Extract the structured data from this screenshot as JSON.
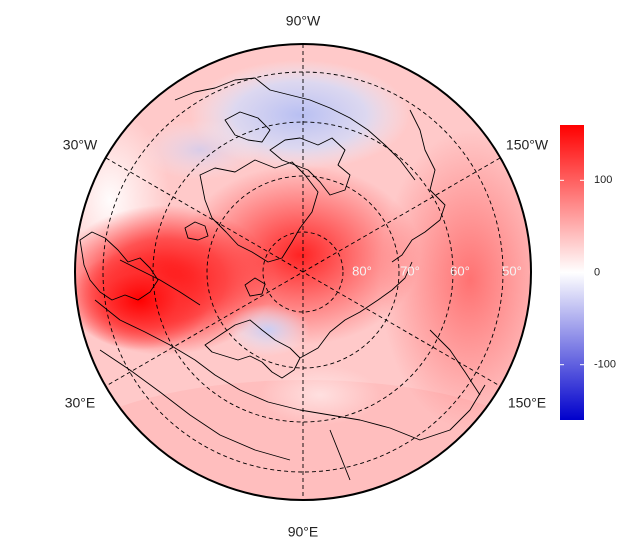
{
  "map": {
    "projection": "north-polar-stereographic",
    "lon_labels": [
      {
        "id": "90w",
        "text": "90°W"
      },
      {
        "id": "30w",
        "text": "30°W"
      },
      {
        "id": "150w",
        "text": "150°W"
      },
      {
        "id": "30e",
        "text": "30°E"
      },
      {
        "id": "150e",
        "text": "150°E"
      },
      {
        "id": "90e",
        "text": "90°E"
      }
    ],
    "lat_labels": [
      "80°",
      "70°",
      "60°",
      "50°"
    ],
    "colorbar": {
      "colors": {
        "low": "#0000cc",
        "mid": "#ffffff",
        "high": "#ff0000"
      },
      "range": [
        -160,
        160
      ],
      "ticks": [
        {
          "value": 100,
          "label": "100"
        },
        {
          "value": 0,
          "label": "0"
        },
        {
          "value": -100,
          "label": "-100"
        }
      ]
    }
  }
}
